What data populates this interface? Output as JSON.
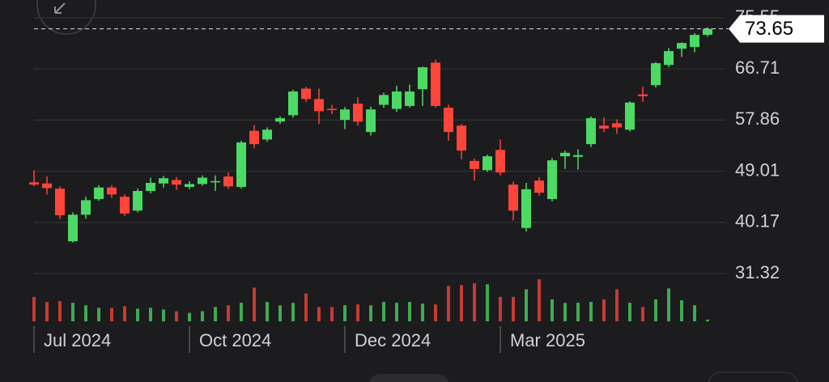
{
  "chart_data": {
    "type": "candlestick",
    "candles": [
      [
        47.1,
        49.2,
        46.4,
        46.7
      ],
      [
        46.9,
        48.1,
        45.0,
        46.1
      ],
      [
        46.0,
        46.4,
        40.8,
        41.4
      ],
      [
        36.9,
        41.9,
        36.7,
        41.5
      ],
      [
        41.5,
        44.6,
        40.8,
        44.0
      ],
      [
        44.2,
        46.6,
        43.9,
        46.2
      ],
      [
        46.2,
        46.6,
        44.4,
        45.0
      ],
      [
        44.6,
        45.0,
        41.3,
        41.7
      ],
      [
        42.2,
        46.0,
        41.9,
        45.6
      ],
      [
        45.6,
        47.9,
        45.2,
        47.0
      ],
      [
        46.9,
        48.2,
        46.2,
        47.8
      ],
      [
        47.5,
        48.0,
        45.8,
        46.7
      ],
      [
        46.3,
        47.3,
        45.9,
        46.8
      ],
      [
        46.8,
        48.3,
        46.5,
        47.9
      ],
      [
        47.1,
        48.3,
        45.6,
        47.3
      ],
      [
        48.1,
        48.8,
        46.0,
        46.4
      ],
      [
        46.3,
        54.3,
        46.0,
        54.0
      ],
      [
        56.0,
        57.0,
        53.0,
        53.7
      ],
      [
        54.5,
        56.6,
        54.1,
        56.2
      ],
      [
        57.6,
        58.5,
        57.2,
        58.2
      ],
      [
        58.7,
        63.1,
        58.3,
        62.8
      ],
      [
        63.3,
        63.6,
        61.0,
        61.5
      ],
      [
        61.5,
        63.3,
        57.2,
        59.4
      ],
      [
        59.8,
        60.5,
        58.9,
        59.6
      ],
      [
        57.9,
        60.1,
        56.3,
        59.7
      ],
      [
        60.7,
        61.8,
        56.9,
        57.6
      ],
      [
        55.8,
        60.2,
        55.2,
        59.7
      ],
      [
        60.5,
        62.6,
        60.0,
        62.2
      ],
      [
        59.8,
        63.8,
        59.3,
        62.8
      ],
      [
        60.3,
        64.0,
        60.0,
        62.8
      ],
      [
        63.2,
        67.1,
        60.3,
        67.0
      ],
      [
        67.8,
        68.3,
        60.0,
        60.3
      ],
      [
        60.0,
        60.5,
        54.3,
        55.8
      ],
      [
        56.9,
        57.2,
        51.1,
        52.6
      ],
      [
        50.8,
        51.2,
        47.4,
        49.4
      ],
      [
        49.2,
        51.9,
        48.9,
        51.6
      ],
      [
        52.7,
        54.5,
        48.3,
        48.8
      ],
      [
        46.7,
        47.2,
        40.5,
        42.2
      ],
      [
        39.2,
        47.0,
        38.6,
        45.9
      ],
      [
        47.4,
        48.0,
        44.8,
        45.3
      ],
      [
        44.2,
        51.3,
        43.8,
        50.9
      ],
      [
        51.6,
        52.6,
        49.4,
        52.2
      ],
      [
        51.5,
        52.8,
        49.3,
        51.8
      ],
      [
        53.7,
        58.5,
        53.2,
        58.2
      ],
      [
        56.9,
        58.3,
        55.8,
        56.4
      ],
      [
        57.3,
        58.0,
        55.5,
        56.6
      ],
      [
        56.2,
        61.1,
        55.9,
        60.9
      ],
      [
        62.3,
        63.6,
        61.0,
        62.0
      ],
      [
        63.9,
        67.9,
        63.5,
        67.7
      ],
      [
        67.4,
        70.3,
        67.0,
        69.8
      ],
      [
        70.2,
        71.3,
        68.8,
        71.2
      ],
      [
        70.5,
        72.9,
        69.6,
        72.6
      ],
      [
        72.6,
        73.9,
        72.3,
        73.65
      ]
    ],
    "volumes": [
      29,
      23,
      24,
      22,
      19,
      16,
      16,
      18,
      15,
      16,
      14,
      12,
      10,
      12,
      17,
      19,
      22,
      40,
      23,
      19,
      22,
      33,
      17,
      17,
      19,
      20,
      19,
      23,
      22,
      23,
      21,
      20,
      42,
      43,
      45,
      44,
      29,
      29,
      38,
      50,
      26,
      22,
      22,
      23,
      26,
      38,
      22,
      17,
      26,
      39,
      25,
      19,
      2
    ],
    "volume_lim": [
      0,
      50
    ],
    "up_color": "#4cd964",
    "down_color": "#ff453a",
    "ylim": [
      31.32,
      75.55
    ],
    "yticks": [
      31.32,
      40.17,
      49.01,
      57.86,
      66.71,
      75.55
    ],
    "xticks": [
      {
        "value": 0,
        "label": "Jul 2024"
      },
      {
        "value": 12,
        "label": "Oct 2024"
      },
      {
        "value": 24,
        "label": "Dec 2024"
      },
      {
        "value": 36,
        "label": "Mar 2025"
      }
    ],
    "last_price": 73.65,
    "grid": true
  }
}
